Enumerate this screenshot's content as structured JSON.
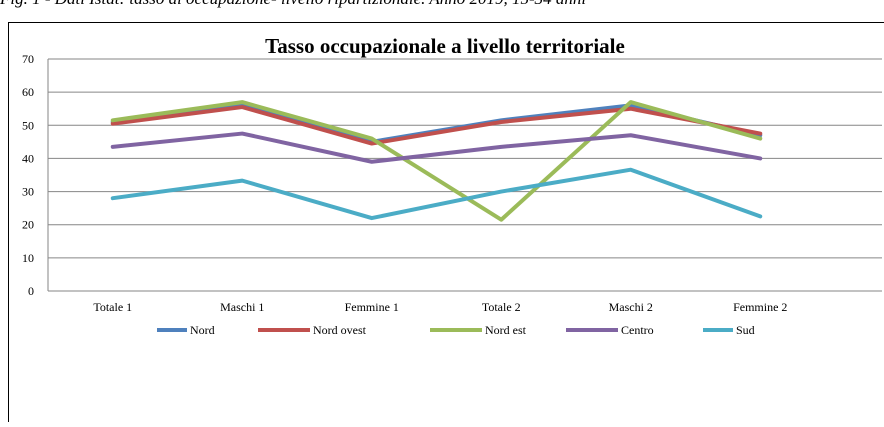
{
  "caption": "Fig. 1 - Dati Istat: tasso di occupazione- livello ripartizionale. Anno 2019, 15-34 anni",
  "chart_data": {
    "type": "line",
    "title": "Tasso occupazionale a livello territoriale",
    "categories": [
      "Totale 1",
      "Maschi 1",
      "Femmine 1",
      "Totale 2",
      "Maschi 2",
      "Femmine 2"
    ],
    "series": [
      {
        "name": "Nord",
        "color": "#4f81bd",
        "values": [
          51,
          56,
          45,
          51.5,
          56,
          47
        ]
      },
      {
        "name": "Nord ovest",
        "color": "#c0504d",
        "values": [
          50.5,
          55.5,
          44.5,
          51,
          55,
          47.5
        ]
      },
      {
        "name": "Nord est",
        "color": "#9bbb59",
        "values": [
          51.5,
          57,
          46,
          21.5,
          57,
          46
        ]
      },
      {
        "name": "Centro",
        "color": "#8064a2",
        "values": [
          43.5,
          47.5,
          39,
          43.5,
          47,
          40
        ]
      },
      {
        "name": "Sud",
        "color": "#4bacc6",
        "values": [
          28,
          33.3,
          22,
          30,
          36.6,
          22.5
        ]
      }
    ],
    "ylim": [
      0,
      70
    ],
    "yticks": [
      0,
      10,
      20,
      30,
      40,
      50,
      60,
      70
    ],
    "grid": true,
    "legend": "bottom"
  }
}
